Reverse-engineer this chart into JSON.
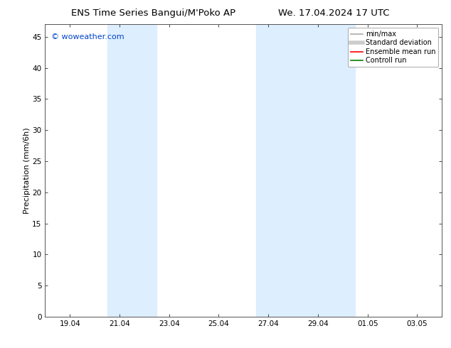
{
  "title": "ENS Time Series Bangui/M’Poko AP",
  "title_left": "ENS Time Series Bangui/M'Poko AP",
  "title_right": "We. 17.04.2024 17 UTC",
  "ylabel": "Precipitation (mm/6h)",
  "watermark": "© woweather.com",
  "background_color": "#ffffff",
  "plot_bg_color": "#ffffff",
  "ylim": [
    0,
    47
  ],
  "yticks": [
    0,
    5,
    10,
    15,
    20,
    25,
    30,
    35,
    40,
    45
  ],
  "xtick_labels": [
    "19.04",
    "21.04",
    "23.04",
    "25.04",
    "27.04",
    "29.04",
    "01.05",
    "03.05"
  ],
  "xtick_positions": [
    1,
    3,
    5,
    7,
    9,
    11,
    13,
    15
  ],
  "xmin": 0,
  "xmax": 16,
  "shaded_regions": [
    {
      "xmin": 2.5,
      "xmax": 4.5,
      "color": "#ddeeff"
    },
    {
      "xmin": 8.5,
      "xmax": 10.5,
      "color": "#ddeeff"
    },
    {
      "xmin": 10.5,
      "xmax": 12.5,
      "color": "#ddeeff"
    }
  ],
  "legend_entries": [
    {
      "label": "min/max",
      "color": "#aaaaaa",
      "lw": 1.2,
      "style": "solid"
    },
    {
      "label": "Standard deviation",
      "color": "#cccccc",
      "lw": 4,
      "style": "solid"
    },
    {
      "label": "Ensemble mean run",
      "color": "#ff0000",
      "lw": 1.2,
      "style": "solid"
    },
    {
      "label": "Controll run",
      "color": "#008000",
      "lw": 1.2,
      "style": "solid"
    }
  ],
  "title_fontsize": 9.5,
  "ylabel_fontsize": 8,
  "tick_fontsize": 7.5,
  "watermark_color": "#0044cc",
  "watermark_fontsize": 8,
  "legend_fontsize": 7
}
